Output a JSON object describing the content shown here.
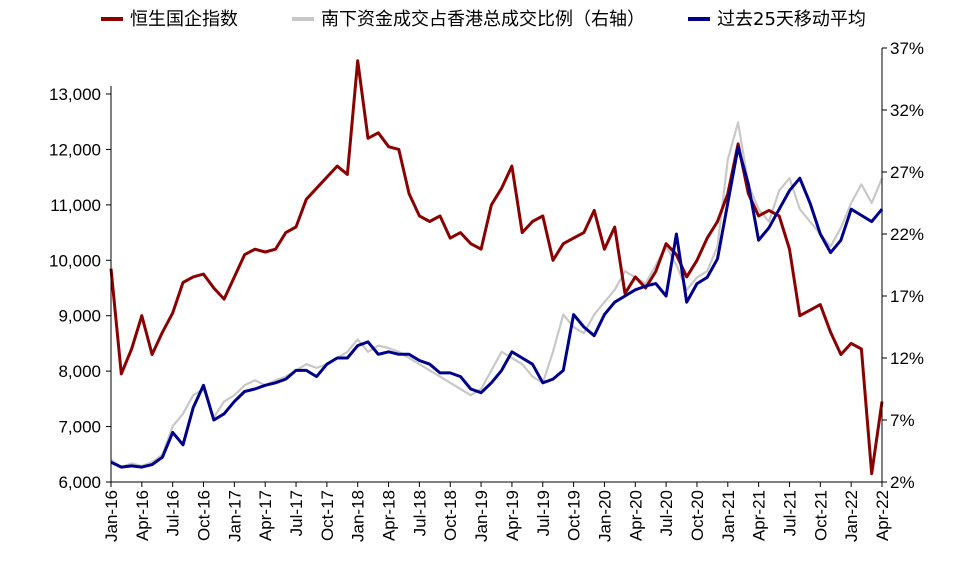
{
  "chart_data": {
    "type": "line",
    "title": "",
    "xlabel": "",
    "ylabel": "",
    "y2label": "",
    "grid": false,
    "legend_position": "top",
    "x_ticks": [
      "Jan-16",
      "Apr-16",
      "Jul-16",
      "Oct-16",
      "Jan-17",
      "Apr-17",
      "Jul-17",
      "Oct-17",
      "Jan-18",
      "Apr-18",
      "Jul-18",
      "Oct-18",
      "Jan-19",
      "Apr-19",
      "Jul-19",
      "Oct-19",
      "Jan-20",
      "Apr-20",
      "Jul-20",
      "Oct-20",
      "Jan-21",
      "Apr-21",
      "Jul-21",
      "Oct-21",
      "Jan-22",
      "Apr-22"
    ],
    "left_axis": {
      "ylim": [
        6000,
        13000
      ],
      "ticks": [
        "6,000",
        "7,000",
        "8,000",
        "9,000",
        "10,000",
        "11,000",
        "12,000",
        "13,000"
      ]
    },
    "right_axis": {
      "ylim": [
        2,
        37
      ],
      "ticks": [
        "2%",
        "7%",
        "12%",
        "17%",
        "22%",
        "27%",
        "32%",
        "37%"
      ]
    },
    "series": [
      {
        "name": "恒生国企指数",
        "axis": "left",
        "color": "#8B0000",
        "points": [
          [
            "Jan-16",
            9850
          ],
          [
            "Feb-16",
            7950
          ],
          [
            "Mar-16",
            8400
          ],
          [
            "Apr-16",
            9000
          ],
          [
            "May-16",
            8300
          ],
          [
            "Jun-16",
            8700
          ],
          [
            "Jul-16",
            9050
          ],
          [
            "Aug-16",
            9600
          ],
          [
            "Sep-16",
            9700
          ],
          [
            "Oct-16",
            9750
          ],
          [
            "Nov-16",
            9500
          ],
          [
            "Dec-16",
            9300
          ],
          [
            "Jan-17",
            9700
          ],
          [
            "Feb-17",
            10100
          ],
          [
            "Mar-17",
            10200
          ],
          [
            "Apr-17",
            10150
          ],
          [
            "May-17",
            10200
          ],
          [
            "Jun-17",
            10500
          ],
          [
            "Jul-17",
            10600
          ],
          [
            "Aug-17",
            11100
          ],
          [
            "Sep-17",
            11300
          ],
          [
            "Oct-17",
            11500
          ],
          [
            "Nov-17",
            11700
          ],
          [
            "Dec-17",
            11550
          ],
          [
            "Jan-18",
            13600
          ],
          [
            "Feb-18",
            12200
          ],
          [
            "Mar-18",
            12300
          ],
          [
            "Apr-18",
            12050
          ],
          [
            "May-18",
            12000
          ],
          [
            "Jun-18",
            11200
          ],
          [
            "Jul-18",
            10800
          ],
          [
            "Aug-18",
            10700
          ],
          [
            "Sep-18",
            10800
          ],
          [
            "Oct-18",
            10400
          ],
          [
            "Nov-18",
            10500
          ],
          [
            "Dec-18",
            10300
          ],
          [
            "Jan-19",
            10200
          ],
          [
            "Feb-19",
            11000
          ],
          [
            "Mar-19",
            11300
          ],
          [
            "Apr-19",
            11700
          ],
          [
            "May-19",
            10500
          ],
          [
            "Jun-19",
            10700
          ],
          [
            "Jul-19",
            10800
          ],
          [
            "Aug-19",
            10000
          ],
          [
            "Sep-19",
            10300
          ],
          [
            "Oct-19",
            10400
          ],
          [
            "Nov-19",
            10500
          ],
          [
            "Dec-19",
            10900
          ],
          [
            "Jan-20",
            10200
          ],
          [
            "Feb-20",
            10600
          ],
          [
            "Mar-20",
            9400
          ],
          [
            "Apr-20",
            9700
          ],
          [
            "May-20",
            9500
          ],
          [
            "Jun-20",
            9800
          ],
          [
            "Jul-20",
            10300
          ],
          [
            "Aug-20",
            10100
          ],
          [
            "Sep-20",
            9700
          ],
          [
            "Oct-20",
            10000
          ],
          [
            "Nov-20",
            10400
          ],
          [
            "Dec-20",
            10700
          ],
          [
            "Jan-21",
            11200
          ],
          [
            "Feb-21",
            12100
          ],
          [
            "Mar-21",
            11200
          ],
          [
            "Apr-21",
            10800
          ],
          [
            "May-21",
            10900
          ],
          [
            "Jun-21",
            10800
          ],
          [
            "Jul-21",
            10200
          ],
          [
            "Aug-21",
            9000
          ],
          [
            "Sep-21",
            9100
          ],
          [
            "Oct-21",
            9200
          ],
          [
            "Nov-21",
            8700
          ],
          [
            "Dec-21",
            8300
          ],
          [
            "Jan-22",
            8500
          ],
          [
            "Feb-22",
            8400
          ],
          [
            "Mar-22",
            6150
          ],
          [
            "Apr-22",
            7450
          ]
        ]
      },
      {
        "name": "南下资金成交占香港总成交比例（右轴）",
        "axis": "right",
        "color": "#C8C8C8",
        "points": [
          [
            "Jan-16",
            3.8
          ],
          [
            "Feb-16",
            3.2
          ],
          [
            "Mar-16",
            3.5
          ],
          [
            "Apr-16",
            3.3
          ],
          [
            "May-16",
            3.6
          ],
          [
            "Jun-16",
            4.2
          ],
          [
            "Jul-16",
            6.5
          ],
          [
            "Aug-16",
            7.5
          ],
          [
            "Sep-16",
            9.0
          ],
          [
            "Oct-16",
            9.5
          ],
          [
            "Nov-16",
            7.2
          ],
          [
            "Dec-16",
            8.5
          ],
          [
            "Jan-17",
            9.0
          ],
          [
            "Feb-17",
            9.8
          ],
          [
            "Mar-17",
            10.2
          ],
          [
            "Apr-17",
            9.8
          ],
          [
            "May-17",
            10.2
          ],
          [
            "Jun-17",
            10.5
          ],
          [
            "Jul-17",
            11.0
          ],
          [
            "Aug-17",
            11.5
          ],
          [
            "Sep-17",
            11.2
          ],
          [
            "Oct-17",
            11.5
          ],
          [
            "Nov-17",
            12.0
          ],
          [
            "Dec-17",
            12.5
          ],
          [
            "Jan-18",
            13.5
          ],
          [
            "Feb-18",
            12.5
          ],
          [
            "Mar-18",
            13.0
          ],
          [
            "Apr-18",
            12.8
          ],
          [
            "May-18",
            12.5
          ],
          [
            "Jun-18",
            12.0
          ],
          [
            "Jul-18",
            11.5
          ],
          [
            "Aug-18",
            11.0
          ],
          [
            "Sep-18",
            10.5
          ],
          [
            "Oct-18",
            10.0
          ],
          [
            "Nov-18",
            9.5
          ],
          [
            "Dec-18",
            9.0
          ],
          [
            "Jan-19",
            9.5
          ],
          [
            "Feb-19",
            11.0
          ],
          [
            "Mar-19",
            12.5
          ],
          [
            "Apr-19",
            12.0
          ],
          [
            "May-19",
            11.5
          ],
          [
            "Jun-19",
            10.5
          ],
          [
            "Jul-19",
            10.0
          ],
          [
            "Aug-19",
            12.5
          ],
          [
            "Sep-19",
            15.5
          ],
          [
            "Oct-19",
            14.5
          ],
          [
            "Nov-19",
            14.0
          ],
          [
            "Dec-19",
            15.5
          ],
          [
            "Jan-20",
            16.5
          ],
          [
            "Feb-20",
            17.5
          ],
          [
            "Mar-20",
            19.0
          ],
          [
            "Apr-20",
            18.5
          ],
          [
            "May-20",
            18.0
          ],
          [
            "Jun-20",
            19.5
          ],
          [
            "Jul-20",
            21.0
          ],
          [
            "Aug-20",
            19.5
          ],
          [
            "Sep-20",
            17.5
          ],
          [
            "Oct-20",
            18.5
          ],
          [
            "Nov-20",
            19.0
          ],
          [
            "Dec-20",
            21.0
          ],
          [
            "Jan-21",
            28.0
          ],
          [
            "Feb-21",
            31.0
          ],
          [
            "Mar-21",
            26.0
          ],
          [
            "Apr-21",
            24.0
          ],
          [
            "May-21",
            23.0
          ],
          [
            "Jun-21",
            25.5
          ],
          [
            "Jul-21",
            26.5
          ],
          [
            "Aug-21",
            24.0
          ],
          [
            "Sep-21",
            23.0
          ],
          [
            "Oct-21",
            22.0
          ],
          [
            "Nov-21",
            21.0
          ],
          [
            "Dec-21",
            22.5
          ],
          [
            "Jan-22",
            24.5
          ],
          [
            "Feb-22",
            26.0
          ],
          [
            "Mar-22",
            24.5
          ],
          [
            "Apr-22",
            26.5
          ]
        ]
      },
      {
        "name": "过去25天移动平均",
        "axis": "right",
        "color": "#00008B",
        "points": [
          [
            "Jan-16",
            3.6
          ],
          [
            "Feb-16",
            3.2
          ],
          [
            "Mar-16",
            3.3
          ],
          [
            "Apr-16",
            3.2
          ],
          [
            "May-16",
            3.4
          ],
          [
            "Jun-16",
            4.0
          ],
          [
            "Jul-16",
            6.0
          ],
          [
            "Aug-16",
            5.0
          ],
          [
            "Sep-16",
            8.0
          ],
          [
            "Oct-16",
            9.8
          ],
          [
            "Nov-16",
            7.0
          ],
          [
            "Dec-16",
            7.5
          ],
          [
            "Jan-17",
            8.5
          ],
          [
            "Feb-17",
            9.3
          ],
          [
            "Mar-17",
            9.5
          ],
          [
            "Apr-17",
            9.8
          ],
          [
            "May-17",
            10.0
          ],
          [
            "Jun-17",
            10.3
          ],
          [
            "Jul-17",
            11.0
          ],
          [
            "Aug-17",
            11.0
          ],
          [
            "Sep-17",
            10.5
          ],
          [
            "Oct-17",
            11.5
          ],
          [
            "Nov-17",
            12.0
          ],
          [
            "Dec-17",
            12.0
          ],
          [
            "Jan-18",
            13.0
          ],
          [
            "Feb-18",
            13.3
          ],
          [
            "Mar-18",
            12.3
          ],
          [
            "Apr-18",
            12.5
          ],
          [
            "May-18",
            12.3
          ],
          [
            "Jun-18",
            12.3
          ],
          [
            "Jul-18",
            11.8
          ],
          [
            "Aug-18",
            11.5
          ],
          [
            "Sep-18",
            10.8
          ],
          [
            "Oct-18",
            10.8
          ],
          [
            "Nov-18",
            10.5
          ],
          [
            "Dec-18",
            9.5
          ],
          [
            "Jan-19",
            9.2
          ],
          [
            "Feb-19",
            10.0
          ],
          [
            "Mar-19",
            11.0
          ],
          [
            "Apr-19",
            12.5
          ],
          [
            "May-19",
            12.0
          ],
          [
            "Jun-19",
            11.5
          ],
          [
            "Jul-19",
            10.0
          ],
          [
            "Aug-19",
            10.3
          ],
          [
            "Sep-19",
            11.0
          ],
          [
            "Oct-19",
            15.5
          ],
          [
            "Nov-19",
            14.5
          ],
          [
            "Dec-19",
            13.8
          ],
          [
            "Jan-20",
            15.5
          ],
          [
            "Feb-20",
            16.5
          ],
          [
            "Mar-20",
            17.0
          ],
          [
            "Apr-20",
            17.5
          ],
          [
            "May-20",
            17.8
          ],
          [
            "Jun-20",
            18.0
          ],
          [
            "Jul-20",
            17.0
          ],
          [
            "Aug-20",
            22.0
          ],
          [
            "Sep-20",
            16.5
          ],
          [
            "Oct-20",
            18.0
          ],
          [
            "Nov-20",
            18.5
          ],
          [
            "Dec-20",
            20.0
          ],
          [
            "Jan-21",
            24.5
          ],
          [
            "Feb-21",
            29.0
          ],
          [
            "Mar-21",
            26.0
          ],
          [
            "Apr-21",
            21.5
          ],
          [
            "May-21",
            22.5
          ],
          [
            "Jun-21",
            24.0
          ],
          [
            "Jul-21",
            25.5
          ],
          [
            "Aug-21",
            26.5
          ],
          [
            "Sep-21",
            24.5
          ],
          [
            "Oct-21",
            22.0
          ],
          [
            "Nov-21",
            20.5
          ],
          [
            "Dec-21",
            21.5
          ],
          [
            "Jan-22",
            24.0
          ],
          [
            "Feb-22",
            23.5
          ],
          [
            "Mar-22",
            23.0
          ],
          [
            "Apr-22",
            24.0
          ]
        ]
      }
    ]
  }
}
